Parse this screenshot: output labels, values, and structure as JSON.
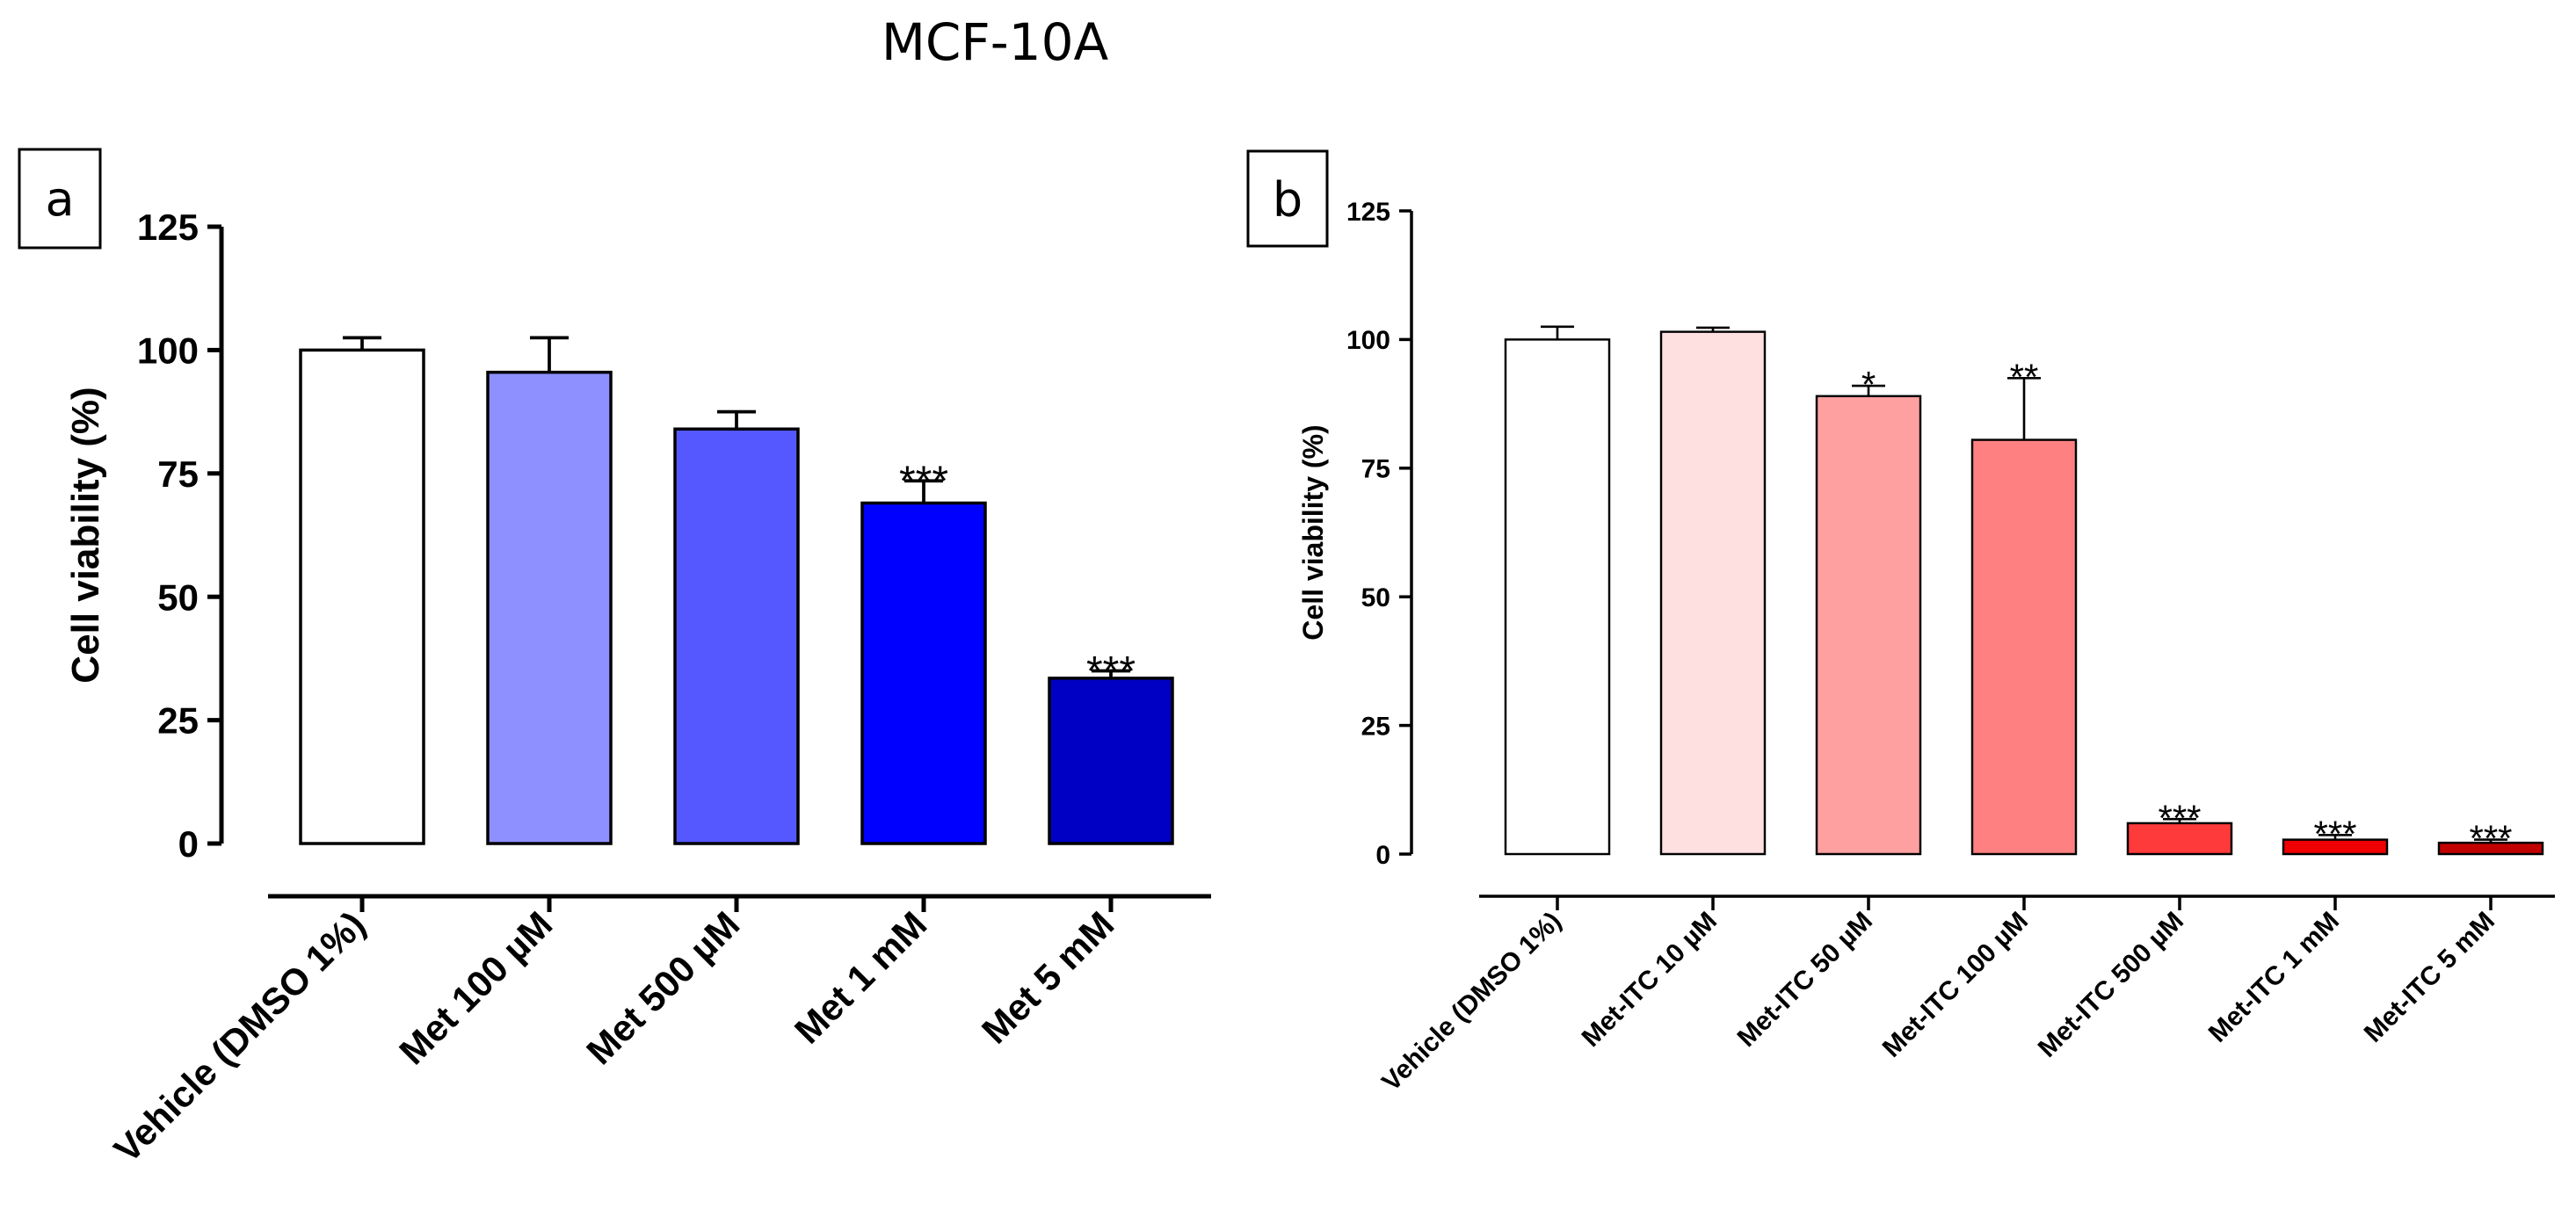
{
  "title": "MCF-10A",
  "chart_data": [
    {
      "panel": "a",
      "type": "bar",
      "title": "",
      "xlabel": "",
      "ylabel": "Cell viability (%)",
      "ylim": [
        0,
        125
      ],
      "yticks": [
        "0",
        "25",
        "50",
        "75",
        "100",
        "125"
      ],
      "categories": [
        "Vehicle (DMSO 1%)",
        "Met 100 µM",
        "Met 500 µM",
        "Met 1 mM",
        "Met 5 mM"
      ],
      "values": [
        100,
        95.5,
        84,
        69,
        33.5
      ],
      "errors": [
        2.5,
        7,
        3.5,
        4.5,
        1.5
      ],
      "significance": [
        "",
        "",
        "",
        "***",
        "***"
      ],
      "colors": [
        "#ffffff",
        "#8f90ff",
        "#5557ff",
        "#0000ff",
        "#0000c4"
      ]
    },
    {
      "panel": "b",
      "type": "bar",
      "title": "",
      "xlabel": "",
      "ylabel": "Cell viability (%)",
      "ylim": [
        0,
        125
      ],
      "yticks": [
        "0",
        "25",
        "50",
        "75",
        "100",
        "125"
      ],
      "categories": [
        "Vehicle (DMSO 1%)",
        "Met-ITC 10 µM",
        "Met-ITC 50 µM",
        "Met-ITC 100 µM",
        "Met-ITC 500 µM",
        "Met-ITC 1 mM",
        "Met-ITC 5 mM"
      ],
      "values": [
        100,
        101.5,
        89,
        80.5,
        6,
        2.8,
        2.2
      ],
      "errors": [
        2.5,
        0.8,
        2,
        12,
        0.8,
        0.9,
        0.6
      ],
      "significance": [
        "",
        "",
        "*",
        "**",
        "***",
        "***",
        "***"
      ],
      "colors": [
        "#ffffff",
        "#ffe0e1",
        "#ffa0a0",
        "#ff8081",
        "#ff3a3a",
        "#f00000",
        "#c10000"
      ]
    }
  ]
}
